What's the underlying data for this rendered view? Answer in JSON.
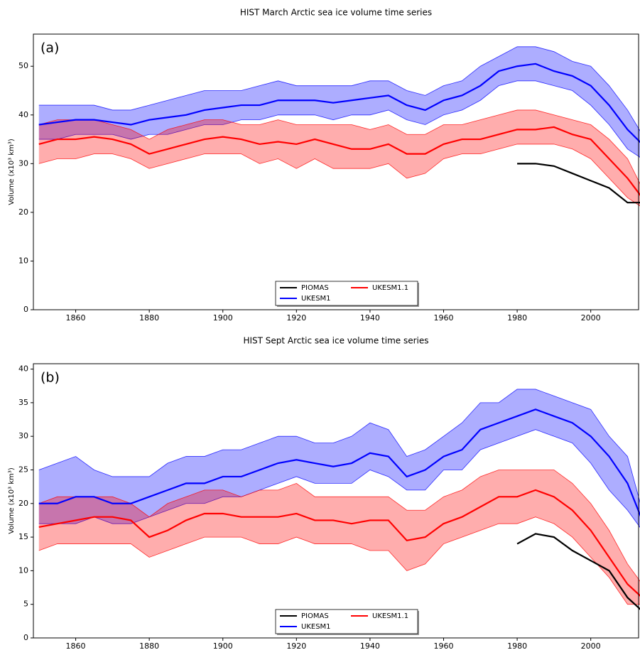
{
  "chart_data": [
    {
      "type": "line",
      "title": "HIST March Arctic sea ice volume time series",
      "annotation": "(a)",
      "y_label": "Volume (x10³ km³)",
      "x": [
        1850,
        1855,
        1860,
        1865,
        1870,
        1875,
        1880,
        1885,
        1890,
        1895,
        1900,
        1905,
        1910,
        1915,
        1920,
        1925,
        1930,
        1935,
        1940,
        1945,
        1950,
        1955,
        1960,
        1965,
        1970,
        1975,
        1980,
        1985,
        1990,
        1995,
        2000,
        2005,
        2010,
        2014
      ],
      "xlim": [
        1848.5,
        2013
      ],
      "ylim": [
        0,
        56.6
      ],
      "xticks": [
        1860,
        1880,
        1900,
        1920,
        1940,
        1960,
        1980,
        2000
      ],
      "yticks": [
        0,
        10,
        20,
        30,
        40,
        50
      ],
      "legend": "lower center",
      "series": [
        {
          "name": "PIOMAS",
          "color": "#000000",
          "values": [
            null,
            null,
            null,
            null,
            null,
            null,
            null,
            null,
            null,
            null,
            null,
            null,
            null,
            null,
            null,
            null,
            null,
            null,
            null,
            null,
            null,
            null,
            null,
            null,
            null,
            null,
            30,
            30,
            29.5,
            28,
            26.5,
            25,
            22,
            22
          ]
        },
        {
          "name": "UKESM1",
          "color": "#0000ff",
          "values": [
            38,
            38.5,
            39,
            39,
            38.5,
            38,
            39,
            39.5,
            40,
            41,
            41.5,
            42,
            42,
            43,
            43,
            43,
            42.5,
            43,
            43.5,
            44,
            42,
            41,
            43,
            44,
            46,
            49,
            50,
            50.5,
            49,
            48,
            46,
            42,
            37,
            34
          ],
          "lower": [
            35,
            35,
            36,
            36,
            36,
            35,
            36,
            36,
            37,
            38,
            38,
            39,
            39,
            40,
            40,
            40,
            39,
            40,
            40,
            41,
            39,
            38,
            40,
            41,
            43,
            46,
            47,
            47,
            46,
            45,
            42,
            38,
            33,
            31
          ],
          "upper": [
            42,
            42,
            42,
            42,
            41,
            41,
            42,
            43,
            44,
            45,
            45,
            45,
            46,
            47,
            46,
            46,
            46,
            46,
            47,
            47,
            45,
            44,
            46,
            47,
            50,
            52,
            54,
            54,
            53,
            51,
            50,
            46,
            41,
            36
          ]
        },
        {
          "name": "UKESM1.1",
          "color": "#ff0000",
          "values": [
            34,
            35,
            35,
            35.5,
            35,
            34,
            32,
            33,
            34,
            35,
            35.5,
            35,
            34,
            34.5,
            34,
            35,
            34,
            33,
            33,
            34,
            32,
            32,
            34,
            35,
            35,
            36,
            37,
            37,
            37.5,
            36,
            35,
            31,
            27,
            23
          ],
          "lower": [
            30,
            31,
            31,
            32,
            32,
            31,
            29,
            30,
            31,
            32,
            32,
            32,
            30,
            31,
            29,
            31,
            29,
            29,
            29,
            30,
            27,
            28,
            31,
            32,
            32,
            33,
            34,
            34,
            34,
            33,
            31,
            27,
            23,
            21
          ],
          "upper": [
            38,
            39,
            39,
            39,
            38,
            37,
            35,
            37,
            38,
            39,
            39,
            38,
            38,
            39,
            38,
            38,
            38,
            38,
            37,
            38,
            36,
            36,
            38,
            38,
            39,
            40,
            41,
            41,
            40,
            39,
            38,
            35,
            31,
            25
          ]
        }
      ]
    },
    {
      "type": "line",
      "title": "HIST Sept Arctic sea ice volume time series",
      "annotation": "(b)",
      "y_label": "Volume (x10³ km³)",
      "x": [
        1850,
        1855,
        1860,
        1865,
        1870,
        1875,
        1880,
        1885,
        1890,
        1895,
        1900,
        1905,
        1910,
        1915,
        1920,
        1925,
        1930,
        1935,
        1940,
        1945,
        1950,
        1955,
        1960,
        1965,
        1970,
        1975,
        1980,
        1985,
        1990,
        1995,
        2000,
        2005,
        2010,
        2014
      ],
      "xlim": [
        1848.5,
        2013
      ],
      "ylim": [
        0,
        40.8
      ],
      "xticks": [
        1860,
        1880,
        1900,
        1920,
        1940,
        1960,
        1980,
        2000
      ],
      "yticks": [
        0,
        5,
        10,
        15,
        20,
        25,
        30,
        35,
        40
      ],
      "legend": "lower center",
      "series": [
        {
          "name": "PIOMAS",
          "color": "#000000",
          "values": [
            null,
            null,
            null,
            null,
            null,
            null,
            null,
            null,
            null,
            null,
            null,
            null,
            null,
            null,
            null,
            null,
            null,
            null,
            null,
            null,
            null,
            null,
            null,
            null,
            null,
            null,
            14,
            15.5,
            15,
            13,
            11.5,
            10,
            6,
            4
          ]
        },
        {
          "name": "UKESM1",
          "color": "#0000ff",
          "values": [
            20,
            20,
            21,
            21,
            20,
            20,
            21,
            22,
            23,
            23,
            24,
            24,
            25,
            26,
            26.5,
            26,
            25.5,
            26,
            27.5,
            27,
            24,
            25,
            27,
            28,
            31,
            32,
            33,
            34,
            33,
            32,
            30,
            27,
            23,
            17.5
          ],
          "lower": [
            17,
            17,
            17,
            18,
            17,
            17,
            18,
            19,
            20,
            20,
            21,
            21,
            22,
            23,
            24,
            23,
            23,
            23,
            25,
            24,
            22,
            22,
            25,
            25,
            28,
            29,
            30,
            31,
            30,
            29,
            26,
            22,
            19,
            16
          ],
          "upper": [
            25,
            26,
            27,
            25,
            24,
            24,
            24,
            26,
            27,
            27,
            28,
            28,
            29,
            30,
            30,
            29,
            29,
            30,
            32,
            31,
            27,
            28,
            30,
            32,
            35,
            35,
            37,
            37,
            36,
            35,
            34,
            30,
            27,
            19
          ]
        },
        {
          "name": "UKESM1.1",
          "color": "#ff0000",
          "values": [
            16.5,
            17,
            17.5,
            18,
            18,
            17.5,
            15,
            16,
            17.5,
            18.5,
            18.5,
            18,
            18,
            18,
            18.5,
            17.5,
            17.5,
            17,
            17.5,
            17.5,
            14.5,
            15,
            17,
            18,
            19.5,
            21,
            21,
            22,
            21,
            19,
            16,
            12,
            8,
            6
          ],
          "lower": [
            13,
            14,
            14,
            14,
            14,
            14,
            12,
            13,
            14,
            15,
            15,
            15,
            14,
            14,
            15,
            14,
            14,
            14,
            13,
            13,
            10,
            11,
            14,
            15,
            16,
            17,
            17,
            18,
            17,
            15,
            12,
            9,
            5,
            5
          ],
          "upper": [
            20,
            21,
            21,
            21,
            21,
            20,
            18,
            20,
            21,
            22,
            22,
            21,
            22,
            22,
            23,
            21,
            21,
            21,
            21,
            21,
            19,
            19,
            21,
            22,
            24,
            25,
            25,
            25,
            25,
            23,
            20,
            16,
            11,
            8
          ]
        }
      ]
    }
  ]
}
